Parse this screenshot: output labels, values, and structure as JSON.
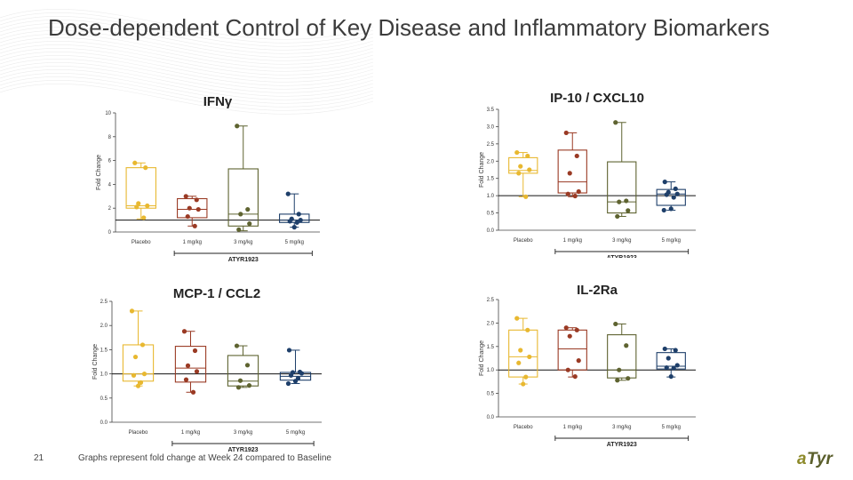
{
  "slide": {
    "title": "Dose-dependent Control of Key Disease and Inflammatory Biomarkers",
    "page_number": "21",
    "footnote": "Graphs represent fold change at Week 24 compared to Baseline",
    "logo_text": "aTyr"
  },
  "colors": {
    "Placebo": "#e8b830",
    "1 mg/kg": "#9a3a24",
    "3 mg/kg": "#5e6330",
    "5 mg/kg": "#1e3f6a"
  },
  "chart_data": [
    {
      "type": "box",
      "title": "IFNγ",
      "ylabel": "Fold Change",
      "ylim": [
        0,
        10
      ],
      "yticks": [
        "0",
        "2",
        "4",
        "6",
        "8",
        "10"
      ],
      "categories": [
        "Placebo",
        "1 mg/kg",
        "3 mg/kg",
        "5 mg/kg"
      ],
      "group_label": "ATYR1923",
      "reference_line": 1,
      "series": [
        {
          "name": "Placebo",
          "min": 1.1,
          "q1": 2.0,
          "median": 2.2,
          "q3": 5.4,
          "max": 5.8,
          "points": [
            5.8,
            5.4,
            2.4,
            2.2,
            2.1,
            1.2
          ]
        },
        {
          "name": "1 mg/kg",
          "min": 0.5,
          "q1": 1.2,
          "median": 1.9,
          "q3": 2.8,
          "max": 3.0,
          "points": [
            3.0,
            2.7,
            2.0,
            1.9,
            1.3,
            0.5
          ]
        },
        {
          "name": "3 mg/kg",
          "min": 0.1,
          "q1": 0.5,
          "median": 1.5,
          "q3": 5.3,
          "max": 8.9,
          "points": [
            8.9,
            1.9,
            1.5,
            0.7,
            0.2
          ]
        },
        {
          "name": "5 mg/kg",
          "min": 0.4,
          "q1": 0.8,
          "median": 1.0,
          "q3": 1.5,
          "max": 3.2,
          "points": [
            3.2,
            1.5,
            1.1,
            1.0,
            0.9,
            0.8,
            0.4
          ]
        }
      ]
    },
    {
      "type": "box",
      "title": "IP-10 / CXCL10",
      "ylabel": "Fold Change",
      "ylim": [
        0,
        3.5
      ],
      "yticks": [
        "0.0",
        "0.5",
        "1.0",
        "1.5",
        "2.0",
        "2.5",
        "3.0",
        "3.5"
      ],
      "categories": [
        "Placebo",
        "1 mg/kg",
        "3 mg/kg",
        "5 mg/kg"
      ],
      "group_label": "ATYR1923",
      "reference_line": 1,
      "series": [
        {
          "name": "Placebo",
          "min": 0.97,
          "q1": 1.65,
          "median": 1.73,
          "q3": 2.1,
          "max": 2.25,
          "points": [
            2.25,
            2.15,
            1.85,
            1.75,
            1.65,
            0.97
          ]
        },
        {
          "name": "1 mg/kg",
          "min": 0.97,
          "q1": 1.08,
          "median": 1.4,
          "q3": 2.32,
          "max": 2.82,
          "points": [
            2.82,
            2.15,
            1.65,
            1.12,
            1.05,
            0.99
          ]
        },
        {
          "name": "3 mg/kg",
          "min": 0.4,
          "q1": 0.5,
          "median": 0.82,
          "q3": 1.98,
          "max": 3.12,
          "points": [
            3.12,
            0.85,
            0.82,
            0.57,
            0.4
          ]
        },
        {
          "name": "5 mg/kg",
          "min": 0.58,
          "q1": 0.72,
          "median": 1.05,
          "q3": 1.18,
          "max": 1.4,
          "points": [
            1.4,
            1.2,
            1.1,
            1.05,
            1.03,
            0.95,
            0.62,
            0.58
          ]
        }
      ]
    },
    {
      "type": "box",
      "title": "MCP-1 / CCL2",
      "ylabel": "Fold Change",
      "ylim": [
        0,
        2.5
      ],
      "yticks": [
        "0.0",
        "0.5",
        "1.0",
        "1.5",
        "2.0",
        "2.5"
      ],
      "categories": [
        "Placebo",
        "1 mg/kg",
        "3 mg/kg",
        "5 mg/kg"
      ],
      "group_label": "ATYR1923",
      "reference_line": 1,
      "series": [
        {
          "name": "Placebo",
          "min": 0.75,
          "q1": 0.85,
          "median": 1.0,
          "q3": 1.6,
          "max": 2.3,
          "points": [
            2.3,
            1.6,
            1.35,
            1.0,
            0.97,
            0.82,
            0.75
          ]
        },
        {
          "name": "1 mg/kg",
          "min": 0.62,
          "q1": 0.83,
          "median": 1.12,
          "q3": 1.57,
          "max": 1.88,
          "points": [
            1.88,
            1.48,
            1.17,
            1.05,
            0.88,
            0.62
          ]
        },
        {
          "name": "3 mg/kg",
          "min": 0.72,
          "q1": 0.75,
          "median": 0.85,
          "q3": 1.38,
          "max": 1.58,
          "points": [
            1.58,
            1.18,
            0.86,
            0.76,
            0.72
          ]
        },
        {
          "name": "5 mg/kg",
          "min": 0.8,
          "q1": 0.87,
          "median": 0.95,
          "q3": 1.03,
          "max": 1.49,
          "points": [
            1.49,
            1.04,
            1.03,
            1.01,
            0.97,
            0.91,
            0.85,
            0.8
          ]
        }
      ]
    },
    {
      "type": "box",
      "title": "IL-2Ra",
      "ylabel": "Fold Change",
      "ylim": [
        0,
        2.5
      ],
      "yticks": [
        "0.0",
        "0.5",
        "1.0",
        "1.5",
        "2.0",
        "2.5"
      ],
      "categories": [
        "Placebo",
        "1 mg/kg",
        "3 mg/kg",
        "5 mg/kg"
      ],
      "group_label": "ATYR1923",
      "reference_line": 1,
      "series": [
        {
          "name": "Placebo",
          "min": 0.7,
          "q1": 0.85,
          "median": 1.28,
          "q3": 1.85,
          "max": 2.1,
          "points": [
            2.1,
            1.85,
            1.42,
            1.28,
            1.15,
            0.85,
            0.7
          ]
        },
        {
          "name": "1 mg/kg",
          "min": 0.85,
          "q1": 1.0,
          "median": 1.45,
          "q3": 1.85,
          "max": 1.9,
          "points": [
            1.9,
            1.85,
            1.72,
            1.2,
            1.0,
            0.86
          ]
        },
        {
          "name": "3 mg/kg",
          "min": 0.78,
          "q1": 0.83,
          "median": 1.0,
          "q3": 1.75,
          "max": 1.98,
          "points": [
            1.98,
            1.52,
            1.0,
            0.82,
            0.78
          ]
        },
        {
          "name": "5 mg/kg",
          "min": 0.85,
          "q1": 1.02,
          "median": 1.08,
          "q3": 1.37,
          "max": 1.45,
          "points": [
            1.45,
            1.42,
            1.25,
            1.1,
            1.05,
            1.04,
            0.86
          ]
        }
      ]
    }
  ]
}
